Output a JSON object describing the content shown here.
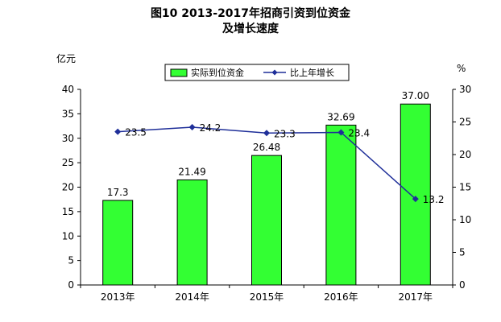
{
  "chart_data": {
    "type": "bar+line",
    "title_line1": "图10  2013-2017年招商引资到位资金",
    "title_line2": "及增长速度",
    "left_unit": "亿元",
    "right_unit": "%",
    "categories": [
      "2013年",
      "2014年",
      "2015年",
      "2016年",
      "2017年"
    ],
    "bar_series": {
      "name": "实际到位资金",
      "values": [
        17.3,
        21.49,
        26.48,
        32.69,
        37.0
      ],
      "labels": [
        "17.3",
        "21.49",
        "26.48",
        "32.69",
        "37.00"
      ],
      "color": "#33ff33"
    },
    "line_series": {
      "name": "比上年增长",
      "values": [
        23.5,
        24.2,
        23.3,
        23.4,
        13.2
      ],
      "labels": [
        "23.5",
        "24.2",
        "23.3",
        "23.4",
        "13.2"
      ],
      "color": "#1f2f99"
    },
    "left_axis": {
      "min": 0,
      "max": 40,
      "step": 5
    },
    "right_axis": {
      "min": 0,
      "max": 30,
      "step": 5
    },
    "legend_position": "top",
    "grid": false
  }
}
